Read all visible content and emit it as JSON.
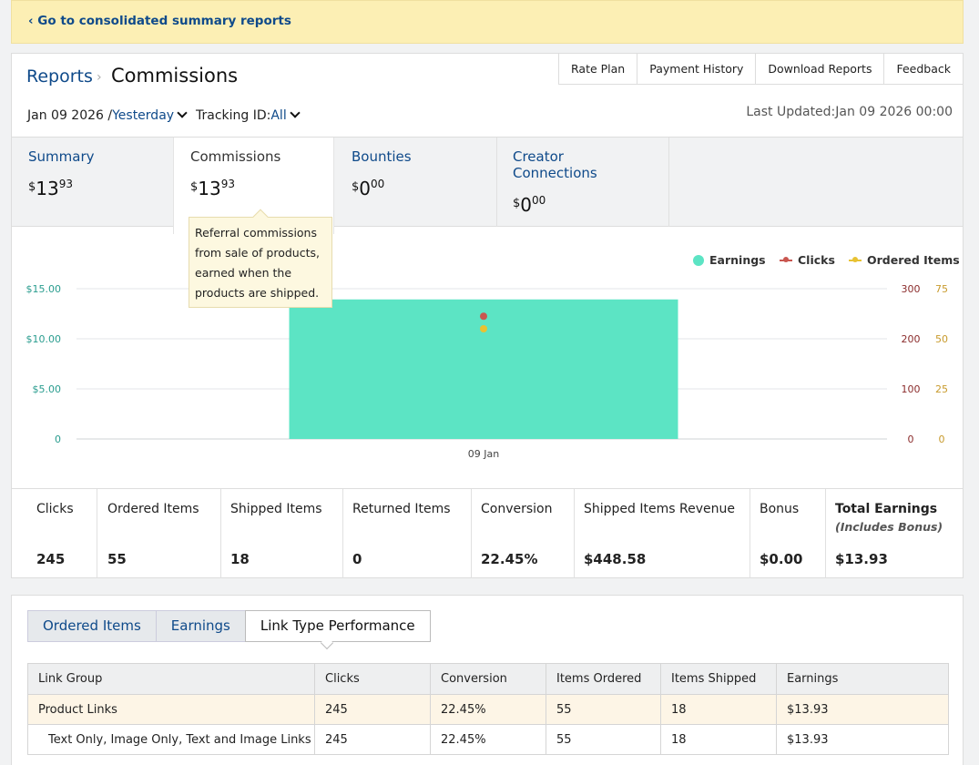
{
  "banner": {
    "link": "‹ Go to consolidated summary reports"
  },
  "header": {
    "crumb_reports": "Reports",
    "crumb_sep": "›",
    "title": "Commissions",
    "links": [
      "Rate Plan",
      "Payment History",
      "Download Reports",
      "Feedback"
    ],
    "date_prefix": "Jan 09 2026 /",
    "date_range": "Yesterday",
    "tracking_prefix": "Tracking ID:",
    "tracking_value": "All",
    "last_updated": "Last Updated:Jan 09 2026 00:00"
  },
  "tabs": [
    {
      "label": "Summary",
      "currency": "$",
      "whole": "13",
      "cents": "93"
    },
    {
      "label": "Commissions",
      "currency": "$",
      "whole": "13",
      "cents": "93"
    },
    {
      "label": "Bounties",
      "currency": "$",
      "whole": "0",
      "cents": "00"
    },
    {
      "label": "Creator Connections",
      "currency": "$",
      "whole": "0",
      "cents": "00"
    }
  ],
  "tooltip": {
    "text": "Referral commissions from sale of products, earned when the products are shipped."
  },
  "chart_data": {
    "type": "bar",
    "categories": [
      "09 Jan"
    ],
    "series": [
      {
        "name": "Earnings",
        "axis": "left",
        "values": [
          13.93
        ],
        "color": "#5ce4c4"
      },
      {
        "name": "Clicks",
        "axis": "right1",
        "values": [
          245
        ],
        "color": "#c9564f"
      },
      {
        "name": "Ordered Items",
        "axis": "right2",
        "values": [
          55
        ],
        "color": "#e8c232"
      }
    ],
    "left_ticks": [
      "$15.00",
      "$10.00",
      "$5.00",
      "0"
    ],
    "right1_ticks": [
      "300",
      "200",
      "100",
      "0"
    ],
    "right2_ticks": [
      "75",
      "50",
      "25",
      "0"
    ],
    "left_range": [
      0,
      15
    ],
    "right1_range": [
      0,
      300
    ],
    "right2_range": [
      0,
      75
    ],
    "grid": true,
    "legend_position": "top-right"
  },
  "stats": [
    {
      "key": "Clicks",
      "value": "245"
    },
    {
      "key": "Ordered Items",
      "value": "55"
    },
    {
      "key": "Shipped Items",
      "value": "18"
    },
    {
      "key": "Returned Items",
      "value": "0"
    },
    {
      "key": "Conversion",
      "value": "22.45%"
    },
    {
      "key": "Shipped Items Revenue",
      "value": "$448.58"
    },
    {
      "key": "Bonus",
      "value": "$0.00"
    },
    {
      "key": "Total Earnings",
      "sub": "(Includes Bonus)",
      "value": "$13.93"
    }
  ],
  "bottom_tabs": [
    "Ordered Items",
    "Earnings",
    "Link Type Performance"
  ],
  "table": {
    "headers": [
      "Link Group",
      "Clicks",
      "Conversion",
      "Items Ordered",
      "Items Shipped",
      "Earnings"
    ],
    "rows": [
      [
        "Product Links",
        "245",
        "22.45%",
        "55",
        "18",
        "$13.93"
      ],
      [
        "Text Only, Image Only, Text and Image Links",
        "245",
        "22.45%",
        "55",
        "18",
        "$13.93"
      ]
    ]
  }
}
